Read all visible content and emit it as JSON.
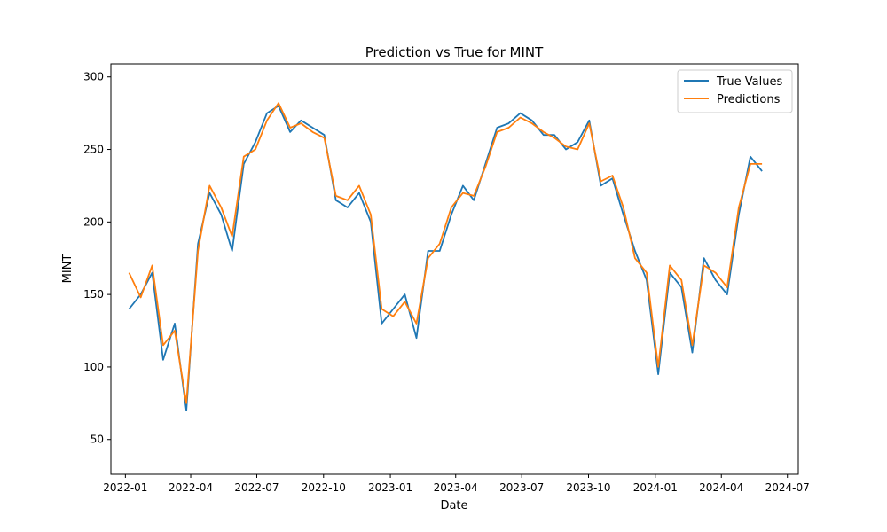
{
  "chart_data": {
    "type": "line",
    "title": "Prediction vs True for MINT",
    "xlabel": "Date",
    "ylabel": "MINT",
    "x_ticks": [
      "2022-01",
      "2022-04",
      "2022-07",
      "2022-10",
      "2023-01",
      "2023-04",
      "2023-07",
      "2023-10",
      "2024-01",
      "2024-04",
      "2024-07"
    ],
    "y_ticks": [
      "50",
      "100",
      "150",
      "200",
      "250",
      "300"
    ],
    "xlim": [
      "2021-12-12",
      "2024-07-16"
    ],
    "ylim": [
      26,
      309
    ],
    "grid": false,
    "legend_position": "top-right",
    "x": [
      "2022-01-06",
      "2022-01-22",
      "2022-02-07",
      "2022-02-22",
      "2022-03-10",
      "2022-03-26",
      "2022-04-11",
      "2022-04-27",
      "2022-05-13",
      "2022-05-28",
      "2022-06-13",
      "2022-06-29",
      "2022-07-15",
      "2022-07-31",
      "2022-08-16",
      "2022-08-31",
      "2022-09-16",
      "2022-10-02",
      "2022-10-18",
      "2022-11-03",
      "2022-11-19",
      "2022-12-05",
      "2022-12-20",
      "2023-01-05",
      "2023-01-21",
      "2023-02-06",
      "2023-02-22",
      "2023-03-10",
      "2023-03-26",
      "2023-04-11",
      "2023-04-26",
      "2023-05-12",
      "2023-05-28",
      "2023-06-13",
      "2023-06-29",
      "2023-07-15",
      "2023-07-31",
      "2023-08-15",
      "2023-08-31",
      "2023-09-16",
      "2023-10-02",
      "2023-10-18",
      "2023-11-03",
      "2023-11-18",
      "2023-12-04",
      "2023-12-20",
      "2024-01-05",
      "2024-01-21",
      "2024-02-06",
      "2024-02-21",
      "2024-03-08",
      "2024-03-24",
      "2024-04-09",
      "2024-04-25",
      "2024-05-11",
      "2024-05-27"
    ],
    "series": [
      {
        "name": "True Values",
        "color": "#1f77b4",
        "values": [
          140,
          150,
          165,
          105,
          130,
          70,
          185,
          220,
          205,
          180,
          240,
          255,
          275,
          280,
          262,
          270,
          265,
          260,
          215,
          210,
          220,
          200,
          130,
          140,
          150,
          120,
          180,
          180,
          205,
          225,
          215,
          240,
          265,
          268,
          275,
          270,
          260,
          260,
          250,
          255,
          270,
          225,
          230,
          205,
          180,
          160,
          95,
          165,
          155,
          110,
          175,
          160,
          150,
          205,
          245,
          235
        ]
      },
      {
        "name": "Predictions",
        "color": "#ff7f0e",
        "values": [
          165,
          148,
          170,
          115,
          125,
          75,
          180,
          225,
          210,
          190,
          245,
          250,
          270,
          282,
          265,
          268,
          262,
          258,
          218,
          215,
          225,
          205,
          140,
          135,
          145,
          130,
          175,
          185,
          210,
          220,
          218,
          238,
          262,
          265,
          272,
          268,
          262,
          258,
          252,
          250,
          268,
          228,
          232,
          210,
          175,
          165,
          100,
          170,
          160,
          115,
          170,
          165,
          155,
          210,
          240,
          240
        ]
      }
    ]
  }
}
